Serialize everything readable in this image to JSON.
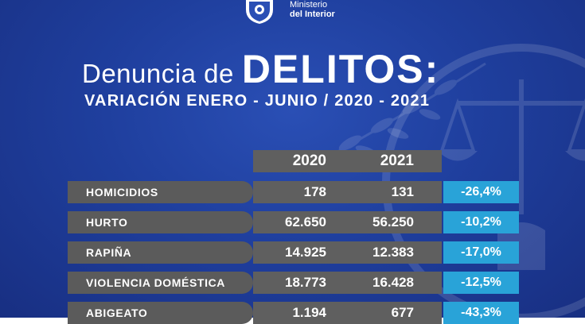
{
  "header": {
    "ministry_line1": "Ministerio",
    "ministry_line2": "del Interior"
  },
  "colors": {
    "background": "#1f3f9e",
    "row_box": "#5f5f5f",
    "variation_box": "#29a3d8",
    "text": "#ffffff"
  },
  "chart_data": {
    "type": "table",
    "title_part1": "Denuncia de",
    "title_part2": "DELITOS:",
    "subtitle": "VARIACIÓN ENERO - JUNIO / 2020 - 2021",
    "columns": [
      "2020",
      "2021"
    ],
    "rows": [
      {
        "category": "HOMICIDIOS",
        "v2020": "178",
        "v2021": "131",
        "variation": "-26,4%"
      },
      {
        "category": "HURTO",
        "v2020": "62.650",
        "v2021": "56.250",
        "variation": "-10,2%"
      },
      {
        "category": "RAPIÑA",
        "v2020": "14.925",
        "v2021": "12.383",
        "variation": "-17,0%"
      },
      {
        "category": "VIOLENCIA DOMÉSTICA",
        "v2020": "18.773",
        "v2021": "16.428",
        "variation": "-12,5%"
      },
      {
        "category": "ABIGEATO",
        "v2020": "1.194",
        "v2021": "677",
        "variation": "-43,3%"
      }
    ]
  }
}
